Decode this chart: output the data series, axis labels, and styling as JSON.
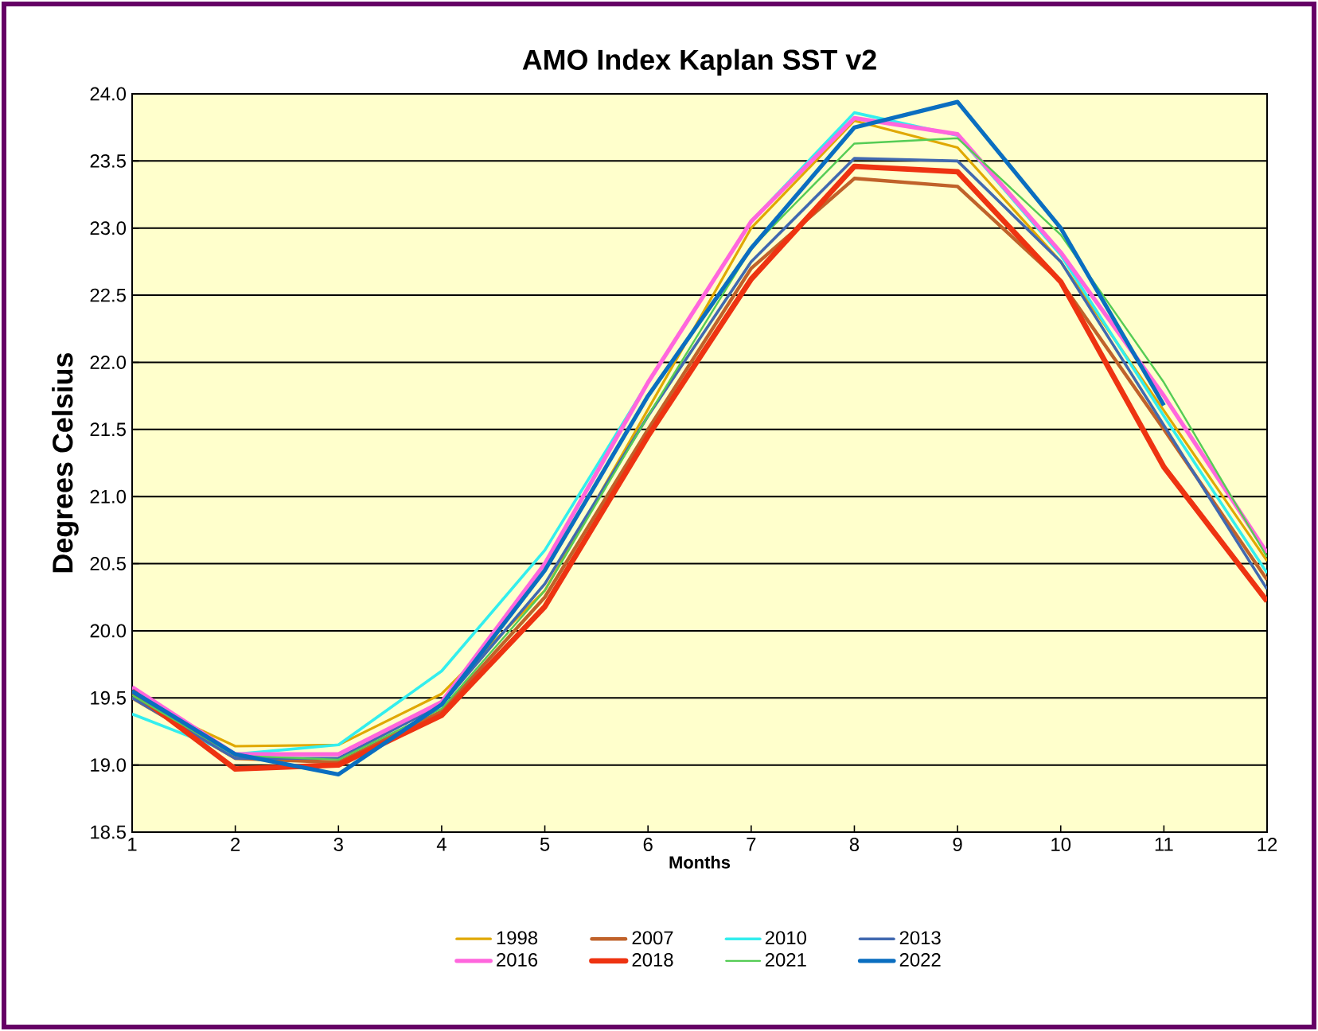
{
  "chart_data": {
    "type": "line",
    "title": "AMO Index Kaplan SST v2",
    "xlabel": "Months",
    "ylabel": "Degrees Celsius",
    "x": [
      1,
      2,
      3,
      4,
      5,
      6,
      7,
      8,
      9,
      10,
      11,
      12
    ],
    "xlim": [
      1,
      12
    ],
    "xticks": [
      1,
      2,
      3,
      4,
      5,
      6,
      7,
      8,
      9,
      10,
      11,
      12
    ],
    "ylim": [
      18.5,
      24.0
    ],
    "yticks": [
      {
        "value": 18.5,
        "label": "18.5"
      },
      {
        "value": 19.0,
        "label": "19.0"
      },
      {
        "value": 19.5,
        "label": "19.5"
      },
      {
        "value": 20.0,
        "label": "20.0"
      },
      {
        "value": 20.5,
        "label": "20.5"
      },
      {
        "value": 21.0,
        "label": "21.0"
      },
      {
        "value": 21.5,
        "label": "21.5"
      },
      {
        "value": 22.0,
        "label": "22.0"
      },
      {
        "value": 22.5,
        "label": "22.5"
      },
      {
        "value": 23.0,
        "label": "23.0"
      },
      {
        "value": 23.5,
        "label": "23.5"
      },
      {
        "value": 24.0,
        "label": "24.0"
      }
    ],
    "grid": "y",
    "legend": "bottom",
    "marker": "none",
    "line_style": "solid",
    "series": [
      {
        "name": "1998",
        "color": "#e0a800",
        "values": [
          19.5,
          19.14,
          19.15,
          19.53,
          20.3,
          21.65,
          23.0,
          23.8,
          23.6,
          22.75,
          21.64,
          20.52
        ]
      },
      {
        "name": "2007",
        "color": "#c0622a",
        "values": [
          19.5,
          19.05,
          19.02,
          19.4,
          20.25,
          21.5,
          22.7,
          23.37,
          23.31,
          22.6,
          21.5,
          20.38
        ]
      },
      {
        "name": "2010",
        "color": "#33eeee",
        "values": [
          19.38,
          19.08,
          19.15,
          19.7,
          20.6,
          21.85,
          23.05,
          23.86,
          23.69,
          22.8,
          21.6,
          20.43
        ]
      },
      {
        "name": "2013",
        "color": "#4169b0",
        "values": [
          19.5,
          19.05,
          19.05,
          19.45,
          20.35,
          21.6,
          22.75,
          23.52,
          23.5,
          22.75,
          21.53,
          20.31
        ]
      },
      {
        "name": "2016",
        "color": "#ff66dd",
        "values": [
          19.58,
          19.08,
          19.08,
          19.47,
          20.5,
          21.85,
          23.05,
          23.82,
          23.7,
          22.82,
          21.75,
          20.58
        ]
      },
      {
        "name": "2018",
        "color": "#ee3311",
        "values": [
          19.55,
          18.97,
          19.0,
          19.37,
          20.18,
          21.45,
          22.62,
          23.46,
          23.42,
          22.6,
          21.22,
          20.22
        ]
      },
      {
        "name": "2021",
        "color": "#55cc55",
        "values": [
          19.52,
          19.07,
          19.04,
          19.42,
          20.3,
          21.6,
          22.85,
          23.63,
          23.67,
          22.95,
          21.85,
          20.55
        ]
      },
      {
        "name": "2022",
        "color": "#0a6ec0",
        "values": [
          19.55,
          19.08,
          18.93,
          19.45,
          20.45,
          21.75,
          22.85,
          23.75,
          23.94,
          23.0,
          21.68,
          null
        ]
      }
    ]
  }
}
